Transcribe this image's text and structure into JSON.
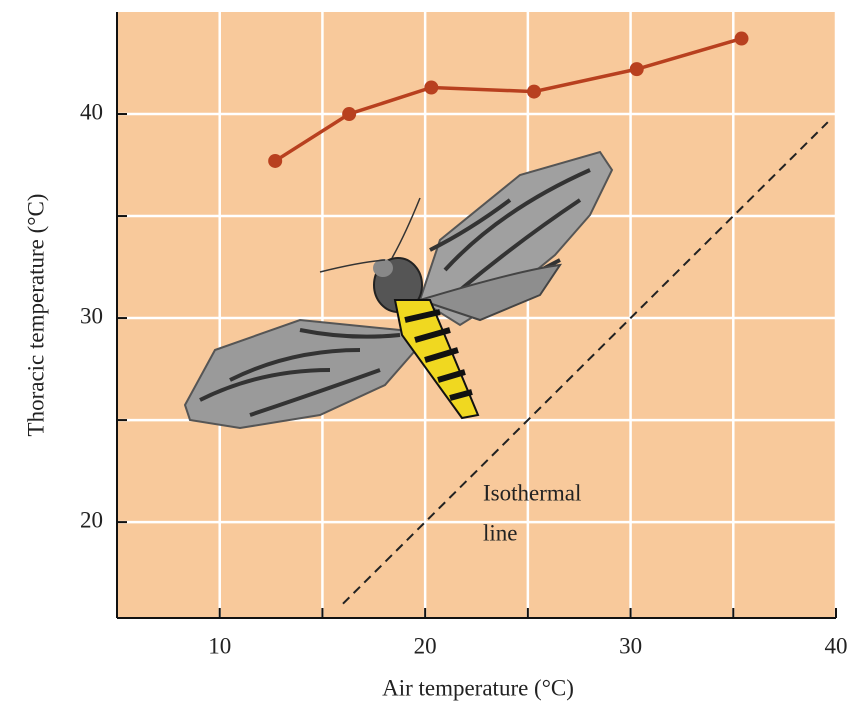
{
  "chart_data": {
    "type": "line",
    "xlabel": "Air temperature (°C)",
    "ylabel": "Thoracic temperature (°C)",
    "xlim": [
      5,
      40
    ],
    "ylim": [
      15.3,
      45
    ],
    "xticks": [
      10,
      20,
      30,
      40
    ],
    "yticks": [
      20,
      30,
      40
    ],
    "x_minor_ticks": [
      15,
      25,
      35
    ],
    "y_minor_ticks": [
      25,
      35
    ],
    "grid": true,
    "background": "#f8c99b",
    "series": [
      {
        "color": "#b8401f",
        "markers": true,
        "x": [
          12.7,
          16.3,
          20.3,
          25.3,
          30.3,
          35.4
        ],
        "values": [
          37.7,
          40.0,
          41.3,
          41.1,
          42.2,
          43.7
        ]
      },
      {
        "color": "#222222",
        "dashed": true,
        "x": [
          16,
          39.6
        ],
        "values": [
          16,
          39.6
        ]
      }
    ],
    "annotation": {
      "text": [
        "Isothermal",
        "line"
      ]
    }
  }
}
